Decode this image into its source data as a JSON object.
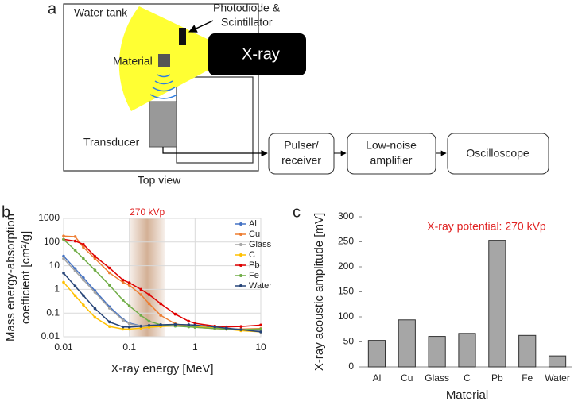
{
  "diagram": {
    "panel": "a",
    "water_tank": "Water tank",
    "photodiode": [
      "Photodiode &",
      "Scintillator"
    ],
    "xray": "X-ray",
    "material": "Material",
    "transducer": "Transducer",
    "top_view": "Top view",
    "pulser": [
      "Pulser/",
      "receiver"
    ],
    "amplifier": [
      "Low-noise",
      "amplifier"
    ],
    "oscilloscope": "Oscilloscope"
  },
  "chart_data": [
    {
      "type": "line",
      "panel": "b",
      "xlabel": "X-ray energy [MeV]",
      "ylabel": [
        "Mass energy-absorption",
        "coefficient [cm²/g]"
      ],
      "xscale": "log",
      "yscale": "log",
      "xlim": [
        0.01,
        10
      ],
      "ylim": [
        0.01,
        1000
      ],
      "xticks": [
        0.01,
        0.1,
        1,
        10
      ],
      "yticks": [
        0.01,
        0.1,
        1,
        10,
        100,
        1000
      ],
      "grid": true,
      "legend": "upper right",
      "band": {
        "label": "270 kVp",
        "x": [
          0.1,
          0.35
        ]
      },
      "x": [
        0.01,
        0.015,
        0.02,
        0.03,
        0.05,
        0.08,
        0.1,
        0.15,
        0.2,
        0.3,
        0.5,
        0.8,
        1,
        2,
        3,
        5,
        10
      ],
      "series": [
        {
          "name": "Al",
          "color": "#4472c4",
          "values": [
            25.4,
            7.49,
            3.09,
            0.878,
            0.184,
            0.0552,
            0.0379,
            0.0283,
            0.0275,
            0.0282,
            0.0287,
            0.0278,
            0.027,
            0.0232,
            0.0212,
            0.0193,
            0.0184
          ]
        },
        {
          "name": "Cu",
          "color": "#ed7d31",
          "values": [
            180,
            170,
            60,
            20,
            5,
            2,
            1.5,
            0.6,
            0.25,
            0.08,
            0.035,
            0.027,
            0.025,
            0.022,
            0.021,
            0.021,
            0.022
          ]
        },
        {
          "name": "Glass",
          "color": "#a5a5a5",
          "values": [
            20,
            6,
            2.5,
            0.75,
            0.16,
            0.05,
            0.035,
            0.028,
            0.027,
            0.028,
            0.029,
            0.028,
            0.027,
            0.023,
            0.021,
            0.019,
            0.017
          ]
        },
        {
          "name": "C",
          "color": "#ffc000",
          "values": [
            2,
            0.54,
            0.22,
            0.066,
            0.027,
            0.021,
            0.021,
            0.023,
            0.025,
            0.027,
            0.029,
            0.028,
            0.027,
            0.023,
            0.021,
            0.018,
            0.016
          ]
        },
        {
          "name": "Pb",
          "color": "#e00000",
          "values": [
            130,
            110,
            80,
            25,
            8,
            2.5,
            1.9,
            1,
            0.6,
            0.25,
            0.09,
            0.045,
            0.037,
            0.028,
            0.026,
            0.027,
            0.031
          ]
        },
        {
          "name": "Fe",
          "color": "#70ad47",
          "values": [
            130,
            45,
            20,
            6.5,
            1.5,
            0.35,
            0.2,
            0.08,
            0.045,
            0.032,
            0.028,
            0.026,
            0.025,
            0.022,
            0.021,
            0.02,
            0.021
          ]
        },
        {
          "name": "Water",
          "color": "#264478",
          "values": [
            4.9,
            1.37,
            0.55,
            0.155,
            0.042,
            0.026,
            0.0255,
            0.0276,
            0.03,
            0.032,
            0.033,
            0.032,
            0.031,
            0.026,
            0.023,
            0.02,
            0.016
          ]
        }
      ]
    },
    {
      "type": "bar",
      "panel": "c",
      "xlabel": "Material",
      "ylabel": "X-ray acoustic amplitude [mV]",
      "annotation": "X-ray potential: 270 kVp",
      "categories": [
        "Al",
        "Cu",
        "Glass",
        "C",
        "Pb",
        "Fe",
        "Water"
      ],
      "values": [
        53,
        94,
        61,
        67,
        253,
        63,
        22
      ],
      "color": "#a6a6a6",
      "ylim": [
        0,
        300
      ],
      "yticks": [
        0,
        50,
        100,
        150,
        200,
        250,
        300
      ],
      "grid": false
    }
  ]
}
